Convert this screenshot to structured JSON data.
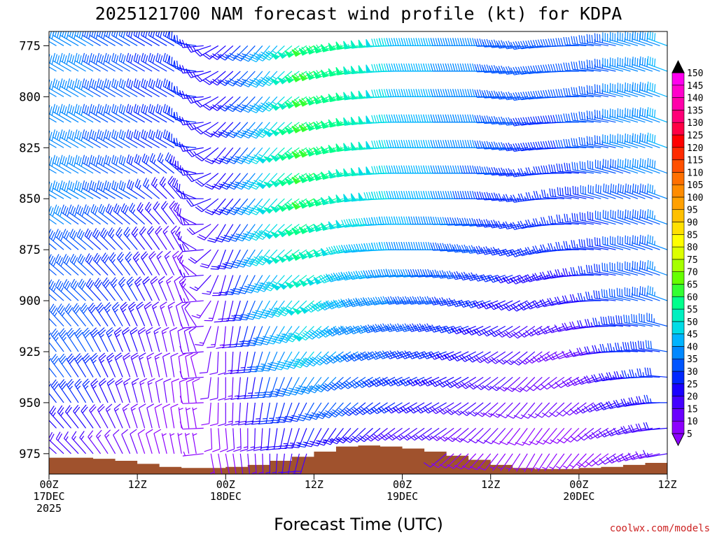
{
  "chart_data": {
    "type": "wind-barb-profile",
    "title": "2025121700 NAM forecast wind profile (kt) for KDPA",
    "xlabel": "Forecast Time (UTC)",
    "ylabel": "",
    "credit": "coolwx.com/models",
    "xlim_hours": [
      0,
      84
    ],
    "ylim_hpa": [
      985,
      768
    ],
    "yticks": [
      "775",
      "800",
      "825",
      "850",
      "875",
      "900",
      "925",
      "950",
      "975"
    ],
    "xticks": [
      {
        "hour": 0,
        "line1": "00Z",
        "line2": "17DEC",
        "line3": "2025"
      },
      {
        "hour": 12,
        "line1": "12Z",
        "line2": "",
        "line3": ""
      },
      {
        "hour": 24,
        "line1": "00Z",
        "line2": "18DEC",
        "line3": ""
      },
      {
        "hour": 36,
        "line1": "12Z",
        "line2": "",
        "line3": ""
      },
      {
        "hour": 48,
        "line1": "00Z",
        "line2": "19DEC",
        "line3": ""
      },
      {
        "hour": 60,
        "line1": "12Z",
        "line2": "",
        "line3": ""
      },
      {
        "hour": 72,
        "line1": "00Z",
        "line2": "20DEC",
        "line3": ""
      },
      {
        "hour": 84,
        "line1": "12Z",
        "line2": "",
        "line3": ""
      }
    ],
    "colorbar": {
      "levels": [
        "5",
        "10",
        "15",
        "20",
        "25",
        "30",
        "35",
        "40",
        "45",
        "50",
        "55",
        "60",
        "65",
        "70",
        "75",
        "80",
        "85",
        "90",
        "95",
        "100",
        "105",
        "110",
        "115",
        "120",
        "125",
        "130",
        "135",
        "140",
        "145",
        "150"
      ],
      "colors": [
        "#8c00ff",
        "#6a00ff",
        "#4400ff",
        "#1a00ff",
        "#0028ff",
        "#0055ff",
        "#0088ff",
        "#00b4ff",
        "#00dce6",
        "#00f0c0",
        "#00ff8c",
        "#33ff33",
        "#66ff00",
        "#a5ff00",
        "#dcff00",
        "#ffff00",
        "#ffe000",
        "#ffc000",
        "#ffa000",
        "#ff8c00",
        "#ff7000",
        "#ff5000",
        "#ff2a00",
        "#ff0000",
        "#ff0044",
        "#ff0077",
        "#ff00aa",
        "#ff00cc",
        "#ff00ee"
      ],
      "under_color": "#8c00ff",
      "over_color": "#000000"
    },
    "terrain": {
      "color": "#a0522d",
      "hours": [
        0,
        3,
        6,
        9,
        12,
        15,
        18,
        21,
        24,
        27,
        30,
        33,
        36,
        39,
        42,
        45,
        48,
        51,
        54,
        57,
        60,
        63,
        66,
        69,
        72,
        75,
        78,
        81,
        84
      ],
      "surface_hpa": [
        977,
        977,
        977.5,
        978.5,
        980,
        981.5,
        982,
        982,
        981.5,
        980.5,
        978.5,
        976.5,
        974,
        971.5,
        971,
        971.5,
        972.5,
        974,
        976,
        978,
        980.5,
        982,
        982.5,
        982.5,
        982,
        981.5,
        980.5,
        979.5,
        978.5
      ]
    },
    "wind": {
      "hours": [
        0,
        6,
        12,
        18,
        24,
        30,
        36,
        42,
        48,
        54,
        60,
        66,
        72,
        78,
        84
      ],
      "levels_hpa": [
        775,
        800,
        825,
        850,
        875,
        900,
        925,
        950,
        975
      ],
      "speed_kt": [
        [
          40,
          35,
          30,
          28,
          20,
          40,
          60,
          55,
          45,
          40,
          35,
          30,
          30,
          35,
          40
        ],
        [
          40,
          35,
          30,
          28,
          20,
          40,
          62,
          55,
          45,
          40,
          35,
          30,
          30,
          35,
          40
        ],
        [
          40,
          35,
          30,
          28,
          20,
          45,
          62,
          55,
          45,
          40,
          35,
          28,
          30,
          35,
          40
        ],
        [
          40,
          35,
          30,
          22,
          20,
          45,
          60,
          50,
          45,
          40,
          30,
          25,
          28,
          33,
          35
        ],
        [
          35,
          30,
          25,
          15,
          20,
          45,
          55,
          45,
          40,
          35,
          30,
          25,
          25,
          30,
          35
        ],
        [
          35,
          30,
          25,
          12,
          15,
          40,
          50,
          40,
          35,
          30,
          25,
          20,
          20,
          30,
          35
        ],
        [
          35,
          30,
          20,
          10,
          12,
          35,
          45,
          35,
          30,
          25,
          20,
          15,
          12,
          25,
          30
        ],
        [
          30,
          25,
          15,
          8,
          10,
          25,
          30,
          30,
          25,
          20,
          15,
          10,
          10,
          20,
          25
        ],
        [
          20,
          15,
          10,
          5,
          8,
          15,
          20,
          15,
          12,
          10,
          8,
          5,
          5,
          12,
          15
        ]
      ],
      "dir_deg": [
        [
          300,
          300,
          300,
          300,
          230,
          220,
          240,
          260,
          270,
          270,
          270,
          260,
          270,
          285,
          290
        ],
        [
          300,
          300,
          300,
          300,
          230,
          220,
          240,
          260,
          270,
          270,
          270,
          260,
          270,
          285,
          290
        ],
        [
          300,
          300,
          300,
          300,
          220,
          220,
          240,
          260,
          270,
          270,
          270,
          260,
          270,
          285,
          290
        ],
        [
          300,
          300,
          300,
          320,
          220,
          220,
          240,
          260,
          270,
          270,
          270,
          260,
          280,
          290,
          290
        ],
        [
          310,
          310,
          320,
          330,
          200,
          220,
          240,
          260,
          270,
          270,
          260,
          250,
          270,
          285,
          290
        ],
        [
          310,
          315,
          330,
          340,
          190,
          210,
          230,
          250,
          260,
          260,
          250,
          240,
          260,
          280,
          290
        ],
        [
          320,
          330,
          340,
          350,
          180,
          200,
          220,
          240,
          250,
          250,
          240,
          230,
          250,
          270,
          280
        ],
        [
          320,
          330,
          345,
          355,
          180,
          190,
          210,
          230,
          240,
          240,
          230,
          220,
          230,
          250,
          270
        ],
        [
          310,
          320,
          340,
          350,
          170,
          180,
          200,
          220,
          230,
          230,
          220,
          210,
          220,
          240,
          260
        ]
      ]
    }
  }
}
